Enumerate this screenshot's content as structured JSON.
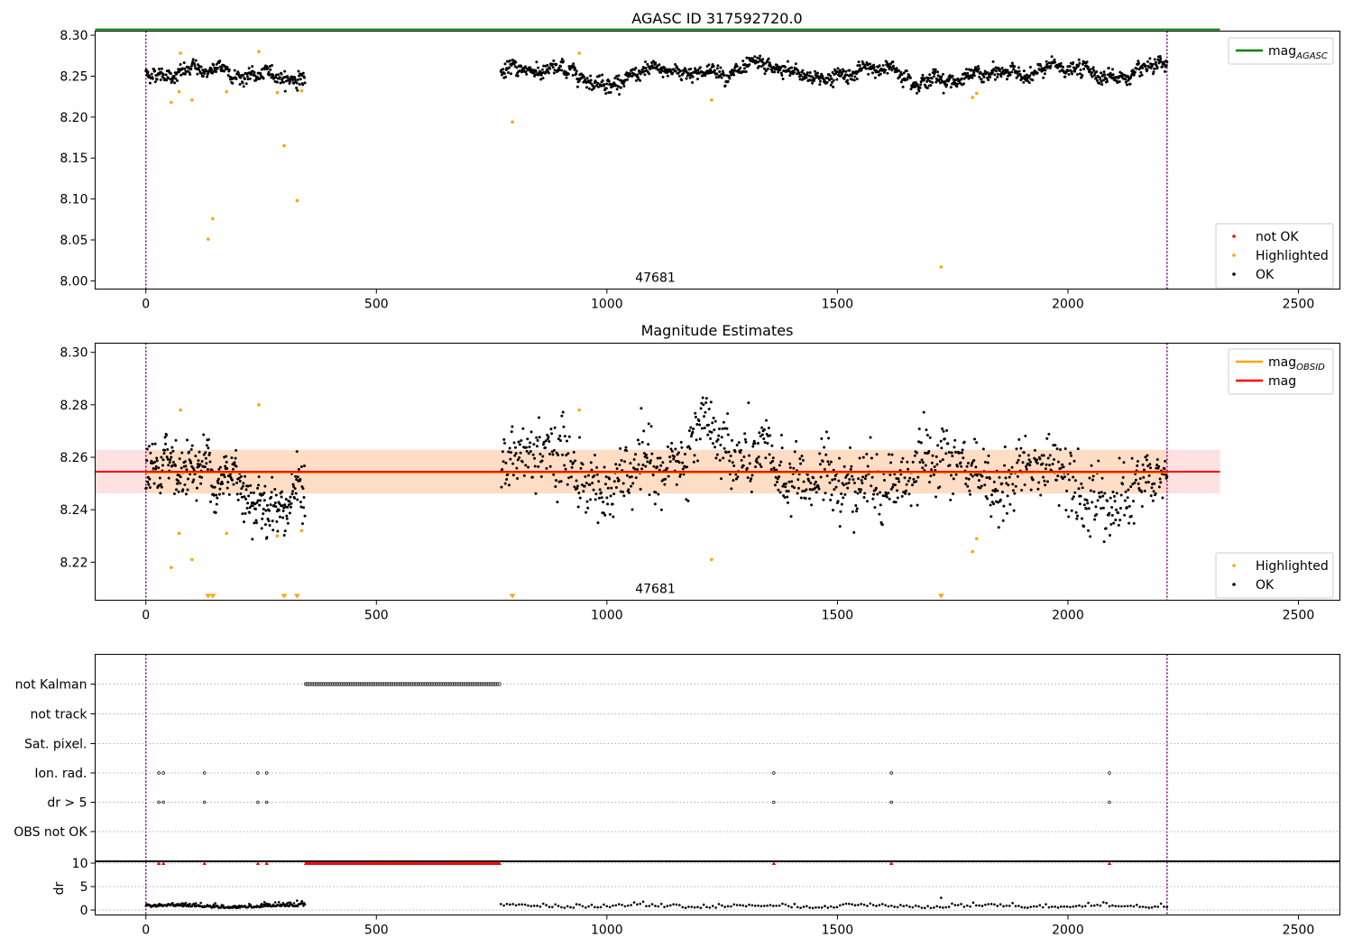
{
  "chart_data": [
    {
      "type": "scatter",
      "title": "AGASC ID 317592720.0",
      "xlim": [
        -110,
        2590
      ],
      "ylim": [
        7.99,
        8.305
      ],
      "x_ticks": [
        0,
        500,
        1000,
        1500,
        2000,
        2500
      ],
      "y_ticks": [
        "8.00",
        "8.05",
        "8.10",
        "8.15",
        "8.20",
        "8.25",
        "8.30"
      ],
      "vlines": [
        0,
        2215
      ],
      "obsid_label": {
        "text": "47681",
        "x": 1105,
        "y": 8.0
      },
      "hline": {
        "name": "mag_AGASC",
        "y": 8.307,
        "color": "#008000"
      },
      "legend_top": {
        "placement": "top-right",
        "entries": [
          {
            "label": "mag",
            "sub": "AGASC",
            "color": "#008000",
            "kind": "line"
          }
        ]
      },
      "legend_bottom": {
        "placement": "lower-right",
        "entries": [
          {
            "label": "not OK",
            "color": "#ff0000",
            "kind": "dot"
          },
          {
            "label": "Highlighted",
            "color": "#ffa500",
            "kind": "dot"
          },
          {
            "label": "OK",
            "color": "#000000",
            "kind": "dot"
          }
        ]
      },
      "series_ok": {
        "name": "OK",
        "color": "#000000",
        "segments": [
          {
            "x_range": [
              0,
              345
            ],
            "base": 8.253,
            "amplitude": 0.008,
            "noise": 0.004,
            "count": 300
          },
          {
            "x_range": [
              770,
              2215
            ],
            "base": 8.253,
            "amplitude": 0.008,
            "noise": 0.004,
            "count": 1250
          }
        ]
      },
      "series_highlighted": {
        "name": "Highlighted",
        "color": "#ffa500",
        "x": [
          55,
          72,
          75,
          100,
          135,
          145,
          175,
          245,
          285,
          300,
          328,
          338,
          795,
          940,
          1227,
          1725,
          1793,
          1802
        ],
        "y": [
          8.218,
          8.231,
          8.278,
          8.221,
          8.051,
          8.076,
          8.231,
          8.28,
          8.23,
          8.165,
          8.098,
          8.232,
          8.194,
          8.278,
          8.221,
          8.017,
          8.224,
          8.229
        ]
      },
      "series_not_ok": {
        "name": "not OK",
        "color": "#ff0000",
        "x": [],
        "y": []
      }
    },
    {
      "type": "scatter",
      "title": "Magnitude Estimates",
      "xlim": [
        -110,
        2590
      ],
      "ylim": [
        8.2055,
        8.3035
      ],
      "x_ticks": [
        0,
        500,
        1000,
        1500,
        2000,
        2500
      ],
      "y_ticks": [
        "8.22",
        "8.24",
        "8.26",
        "8.28",
        "8.30"
      ],
      "vlines": [
        0,
        2215
      ],
      "obsid_label": {
        "text": "47681",
        "x": 1105,
        "y": 8.2055
      },
      "band_mag": {
        "y": 8.2545,
        "lo": 8.2462,
        "hi": 8.2628,
        "x_range": [
          -110,
          2330
        ],
        "color": "#ff0000",
        "fill": "#ffcccc"
      },
      "band_obsid": {
        "y": 8.2545,
        "lo": 8.2462,
        "hi": 8.2628,
        "x_range": [
          0,
          2215
        ],
        "color": "#ffa500",
        "fill": "#ffdcc0"
      },
      "legend_top": {
        "placement": "top-right",
        "entries": [
          {
            "label": "mag",
            "sub": "OBSID",
            "color": "#ffa500",
            "kind": "line"
          },
          {
            "label": "mag",
            "sub": "",
            "color": "#ff0000",
            "kind": "line"
          }
        ]
      },
      "legend_bottom": {
        "placement": "lower-right",
        "entries": [
          {
            "label": "Highlighted",
            "color": "#ffa500",
            "kind": "dot"
          },
          {
            "label": "OK",
            "color": "#000000",
            "kind": "dot"
          }
        ]
      },
      "series_ok": {
        "name": "OK",
        "color": "#000000",
        "segments": [
          {
            "x_range": [
              0,
              345
            ],
            "base": 8.253,
            "amplitude": 0.008,
            "noise": 0.005,
            "count": 340
          },
          {
            "x_range": [
              770,
              2215
            ],
            "base": 8.253,
            "amplitude": 0.007,
            "noise": 0.006,
            "count": 1050
          }
        ]
      },
      "series_highlighted": {
        "name": "Highlighted",
        "color": "#ffa500",
        "x": [
          55,
          72,
          75,
          100,
          175,
          245,
          285,
          338,
          940,
          1227,
          1793,
          1802
        ],
        "y": [
          8.218,
          8.231,
          8.278,
          8.221,
          8.231,
          8.28,
          8.23,
          8.232,
          8.278,
          8.221,
          8.224,
          8.229
        ]
      },
      "markers_below": {
        "color": "#ffa500",
        "x": [
          135,
          145,
          300,
          328,
          795,
          1725
        ]
      }
    },
    {
      "type": "scatter",
      "title": "",
      "xlim": [
        -110,
        2590
      ],
      "x_ticks": [
        0,
        500,
        1000,
        1500,
        2000,
        2500
      ],
      "vlines": [
        0,
        2215
      ],
      "flag_rows": [
        "not Kalman",
        "not track",
        "Sat. pixel.",
        "Ion. rad.",
        "dr > 5",
        "OBS not OK"
      ],
      "flags": {
        "not Kalman": {
          "x_range": [
            347,
            767
          ],
          "count": 130
        },
        "not track": {
          "x": []
        },
        "Sat. pixel.": {
          "x": []
        },
        "Ion. rad.": {
          "x": [
            28,
            38,
            127,
            243,
            262,
            1362,
            1617,
            2090
          ]
        },
        "dr > 5": {
          "x": [
            28,
            38,
            127,
            243,
            262,
            1362,
            1617,
            2090
          ]
        },
        "OBS not OK": {
          "x": []
        }
      },
      "dr": {
        "ylabel": "dr",
        "ylim": [
          0,
          10
        ],
        "y_ticks": [
          "0",
          "5",
          "10"
        ],
        "clipped_color": "#ff0000",
        "clipped_x": [
          28,
          38,
          127,
          243,
          262,
          1362,
          1617,
          2090
        ],
        "clipped_range": [
          347,
          767
        ],
        "line_segments": [
          [
            0,
            345
          ],
          [
            770,
            2215
          ]
        ],
        "outliers": {
          "x": [
            300,
            328,
            1725
          ],
          "y": [
            1.2,
            2.0,
            2.6
          ]
        }
      }
    }
  ]
}
